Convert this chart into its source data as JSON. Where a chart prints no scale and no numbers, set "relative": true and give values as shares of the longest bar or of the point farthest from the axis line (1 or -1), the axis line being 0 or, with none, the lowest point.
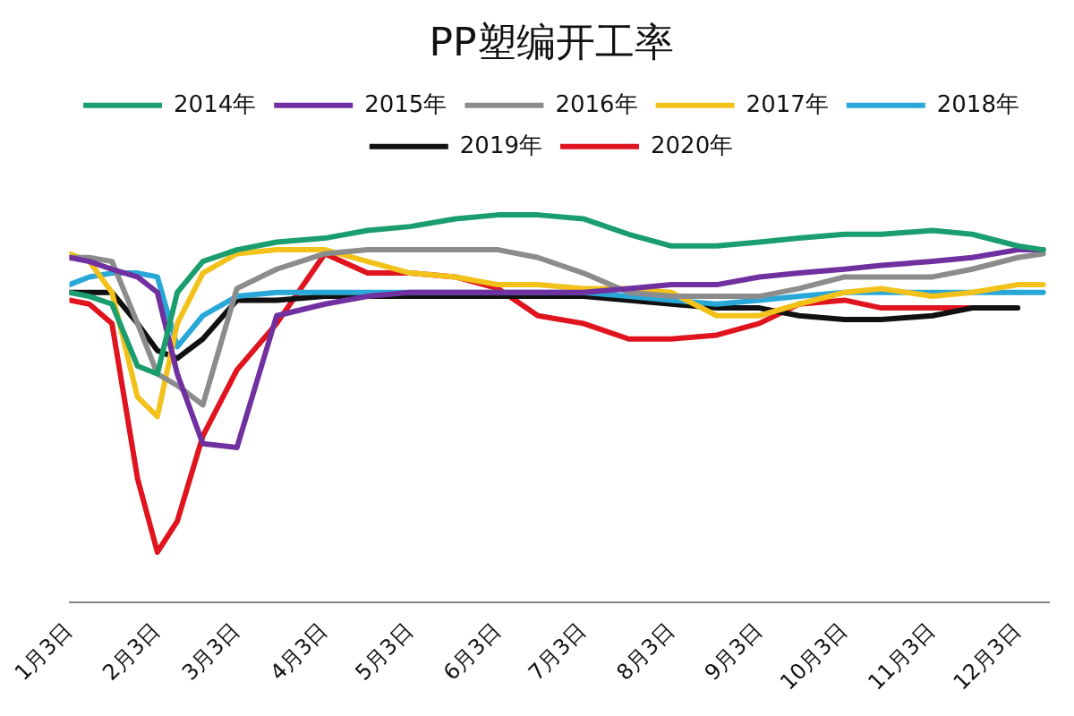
{
  "chart_data": {
    "type": "line",
    "title": "PP塑编开工率",
    "relative": true,
    "legend": "top",
    "marker": "none",
    "line_style": "solid",
    "x": [
      "--01-03",
      "--01-10",
      "--01-18",
      "--01-27",
      "--02-03",
      "--02-10",
      "--02-19",
      "--03-03",
      "--03-17",
      "--04-03",
      "--04-18",
      "--05-03",
      "--05-19",
      "--06-03",
      "--06-17",
      "--07-03",
      "--07-19",
      "--08-03",
      "--08-19",
      "--09-03",
      "--09-17",
      "--10-03",
      "--10-16",
      "--11-03",
      "--11-17",
      "--12-03",
      "--12-12"
    ],
    "xlim": [
      "--01-03",
      "--12-14"
    ],
    "xticks": [
      {
        "value": "--01-03",
        "label": "1月3日"
      },
      {
        "value": "--02-03",
        "label": "2月3日"
      },
      {
        "value": "--03-03",
        "label": "3月3日"
      },
      {
        "value": "--04-03",
        "label": "4月3日"
      },
      {
        "value": "--05-03",
        "label": "5月3日"
      },
      {
        "value": "--06-03",
        "label": "6月3日"
      },
      {
        "value": "--07-03",
        "label": "7月3日"
      },
      {
        "value": "--08-03",
        "label": "8月3日"
      },
      {
        "value": "--09-03",
        "label": "9月3日"
      },
      {
        "value": "--10-03",
        "label": "10月3日"
      },
      {
        "value": "--11-03",
        "label": "11月3日"
      },
      {
        "value": "--12-03",
        "label": "12月3日"
      }
    ],
    "series": [
      {
        "name": "2014年",
        "color": "#1a9e6e",
        "values": [
          0.8,
          0.79,
          0.77,
          0.61,
          0.59,
          0.8,
          0.88,
          0.91,
          0.93,
          0.94,
          0.96,
          0.97,
          0.99,
          1.0,
          1.0,
          0.99,
          0.95,
          0.92,
          0.92,
          0.93,
          0.94,
          0.95,
          0.95,
          0.96,
          0.95,
          0.92,
          0.91
        ]
      },
      {
        "name": "2015年",
        "color": "#7030a0",
        "values": [
          0.89,
          0.88,
          0.86,
          0.84,
          0.8,
          0.59,
          0.41,
          0.4,
          0.74,
          0.77,
          0.79,
          0.8,
          0.8,
          0.8,
          0.8,
          0.8,
          0.81,
          0.82,
          0.82,
          0.84,
          0.85,
          0.86,
          0.87,
          0.88,
          0.89,
          0.91,
          0.91
        ]
      },
      {
        "name": "2016年",
        "color": "#8c8c8c",
        "values": [
          0.89,
          0.89,
          0.88,
          0.72,
          0.59,
          0.56,
          0.51,
          0.81,
          0.86,
          0.9,
          0.91,
          0.91,
          0.91,
          0.91,
          0.89,
          0.85,
          0.8,
          0.79,
          0.79,
          0.79,
          0.81,
          0.84,
          0.84,
          0.84,
          0.86,
          0.89,
          0.9
        ]
      },
      {
        "name": "2017年",
        "color": "#f2c21b",
        "values": [
          0.9,
          0.88,
          0.8,
          0.53,
          0.48,
          0.72,
          0.85,
          0.9,
          0.91,
          0.91,
          0.88,
          0.85,
          0.84,
          0.82,
          0.82,
          0.81,
          0.81,
          0.8,
          0.74,
          0.74,
          0.77,
          0.8,
          0.81,
          0.79,
          0.8,
          0.82,
          0.82
        ]
      },
      {
        "name": "2018年",
        "color": "#29a8d8",
        "values": [
          0.82,
          0.84,
          0.85,
          0.85,
          0.84,
          0.66,
          0.74,
          0.79,
          0.8,
          0.8,
          0.8,
          0.8,
          0.8,
          0.8,
          0.8,
          0.8,
          0.79,
          0.78,
          0.77,
          0.78,
          0.79,
          0.8,
          0.8,
          0.8,
          0.8,
          0.8,
          0.8
        ]
      },
      {
        "name": "2019年",
        "color": "#111111",
        "values": [
          0.8,
          0.8,
          0.8,
          0.72,
          0.65,
          0.63,
          0.68,
          0.78,
          0.78,
          0.79,
          0.79,
          0.79,
          0.79,
          0.79,
          0.79,
          0.79,
          0.78,
          0.77,
          0.76,
          0.76,
          0.74,
          0.73,
          0.73,
          0.74,
          0.76,
          0.76,
          null
        ]
      },
      {
        "name": "2020年",
        "color": "#e0141e",
        "values": [
          0.78,
          0.77,
          0.72,
          0.32,
          0.13,
          0.21,
          0.43,
          0.6,
          0.72,
          0.9,
          0.85,
          0.85,
          0.84,
          0.81,
          0.74,
          0.72,
          0.68,
          0.68,
          0.69,
          0.72,
          0.77,
          0.78,
          0.76,
          0.76,
          0.76,
          null,
          null
        ]
      }
    ]
  }
}
